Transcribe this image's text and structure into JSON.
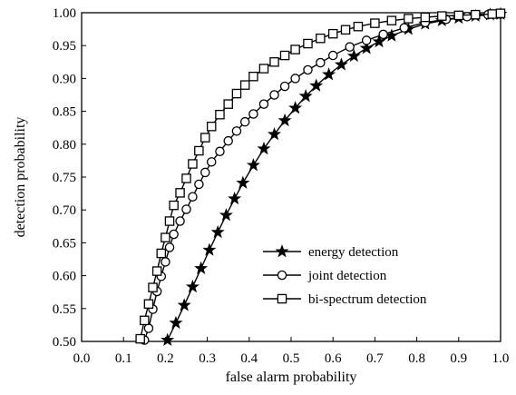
{
  "chart_data": {
    "type": "line",
    "title": "",
    "xlabel": "false alarm probability",
    "ylabel": "detection probability",
    "xlim": [
      0.0,
      1.0
    ],
    "ylim": [
      0.5,
      1.0
    ],
    "xticks": [
      0.0,
      0.1,
      0.2,
      0.3,
      0.4,
      0.5,
      0.6,
      0.7,
      0.8,
      0.9,
      1.0
    ],
    "yticks": [
      0.5,
      0.55,
      0.6,
      0.65,
      0.7,
      0.75,
      0.8,
      0.85,
      0.9,
      0.95,
      1.0
    ],
    "xtick_labels": [
      "0.0",
      "0.1",
      "0.2",
      "0.3",
      "0.4",
      "0.5",
      "0.6",
      "0.7",
      "0.8",
      "0.9",
      "1.0"
    ],
    "ytick_labels": [
      "0.50",
      "0.55",
      "0.60",
      "0.65",
      "0.70",
      "0.75",
      "0.80",
      "0.85",
      "0.90",
      "0.95",
      "1.00"
    ],
    "grid": false,
    "legend_position": "lower-right inside plot area",
    "line_color": "#000000",
    "series": [
      {
        "name": "energy detection",
        "marker": "star",
        "x": [
          0.205,
          0.225,
          0.245,
          0.265,
          0.285,
          0.305,
          0.325,
          0.345,
          0.365,
          0.385,
          0.41,
          0.435,
          0.46,
          0.485,
          0.51,
          0.535,
          0.56,
          0.59,
          0.62,
          0.65,
          0.68,
          0.71,
          0.74,
          0.78,
          0.82,
          0.86,
          0.9,
          0.94,
          0.975,
          1.0
        ],
        "y": [
          0.502,
          0.528,
          0.555,
          0.583,
          0.611,
          0.639,
          0.666,
          0.692,
          0.717,
          0.741,
          0.768,
          0.793,
          0.815,
          0.836,
          0.855,
          0.873,
          0.889,
          0.906,
          0.921,
          0.934,
          0.946,
          0.956,
          0.965,
          0.975,
          0.983,
          0.988,
          0.992,
          0.995,
          0.997,
          0.998
        ]
      },
      {
        "name": "joint detection",
        "marker": "circle",
        "x": [
          0.15,
          0.16,
          0.17,
          0.18,
          0.19,
          0.2,
          0.21,
          0.22,
          0.235,
          0.25,
          0.265,
          0.28,
          0.295,
          0.31,
          0.33,
          0.35,
          0.37,
          0.39,
          0.41,
          0.435,
          0.46,
          0.485,
          0.51,
          0.54,
          0.57,
          0.6,
          0.64,
          0.68,
          0.72,
          0.77,
          0.82,
          0.87,
          0.92,
          0.97,
          1.0
        ],
        "y": [
          0.502,
          0.52,
          0.549,
          0.576,
          0.599,
          0.621,
          0.643,
          0.663,
          0.683,
          0.701,
          0.72,
          0.739,
          0.757,
          0.773,
          0.789,
          0.805,
          0.82,
          0.834,
          0.846,
          0.861,
          0.875,
          0.888,
          0.9,
          0.913,
          0.924,
          0.935,
          0.948,
          0.958,
          0.967,
          0.977,
          0.985,
          0.99,
          0.994,
          0.997,
          0.998
        ]
      },
      {
        "name": "bi-spectrum detection",
        "marker": "square",
        "x": [
          0.14,
          0.15,
          0.16,
          0.17,
          0.18,
          0.19,
          0.2,
          0.21,
          0.22,
          0.235,
          0.25,
          0.265,
          0.28,
          0.295,
          0.31,
          0.33,
          0.35,
          0.37,
          0.39,
          0.41,
          0.435,
          0.46,
          0.485,
          0.51,
          0.54,
          0.57,
          0.6,
          0.63,
          0.66,
          0.7,
          0.74,
          0.78,
          0.82,
          0.86,
          0.9,
          0.94,
          0.98,
          1.0
        ],
        "y": [
          0.504,
          0.532,
          0.557,
          0.582,
          0.607,
          0.634,
          0.658,
          0.683,
          0.707,
          0.726,
          0.748,
          0.77,
          0.79,
          0.81,
          0.827,
          0.845,
          0.861,
          0.877,
          0.89,
          0.903,
          0.915,
          0.925,
          0.935,
          0.944,
          0.953,
          0.961,
          0.968,
          0.974,
          0.979,
          0.984,
          0.988,
          0.991,
          0.993,
          0.995,
          0.996,
          0.997,
          0.998,
          0.999
        ]
      }
    ]
  }
}
